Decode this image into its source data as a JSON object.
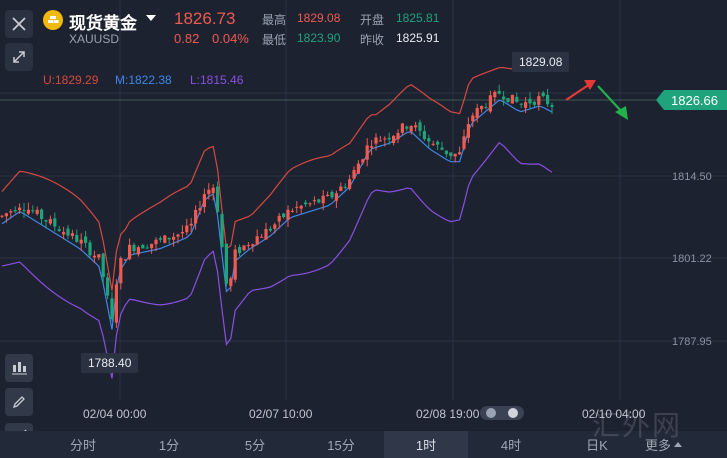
{
  "header": {
    "title": "现货黄金",
    "symbol": "XAUUSD",
    "price": "1826.73",
    "change": "0.82",
    "change_pct": "0.04%",
    "stats": {
      "high_label": "最高",
      "high": "1829.08",
      "open_label": "开盘",
      "open": "1825.81",
      "low_label": "最低",
      "low": "1823.90",
      "prev_close_label": "昨收",
      "prev_close": "1825.91"
    }
  },
  "bollinger": {
    "upper": "U:1829.29",
    "middle": "M:1822.38",
    "lower": "L:1815.46"
  },
  "price_axis": [
    "1814.50",
    "1801.22",
    "1787.95"
  ],
  "current_price_tag": "1826.66",
  "callouts": {
    "high": "1829.08",
    "low": "1788.40"
  },
  "time_axis": [
    "02/04 00:00",
    "02/07 10:00",
    "02/08 19:00",
    "02/10 04:00"
  ],
  "tabs": [
    {
      "label": "分时",
      "active": false
    },
    {
      "label": "1分",
      "active": false
    },
    {
      "label": "5分",
      "active": false
    },
    {
      "label": "15分",
      "active": false
    },
    {
      "label": "1时",
      "active": true
    },
    {
      "label": "4时",
      "active": false
    },
    {
      "label": "日K",
      "active": false
    },
    {
      "label": "更多",
      "active": false
    }
  ],
  "watermark": "汇外网",
  "colors": {
    "up": "#f05a4f",
    "down": "#1fa37a",
    "upper_band": "#d9483f",
    "middle_band": "#3f86e6",
    "lower_band": "#8b4fe0",
    "background": "#1c2230"
  },
  "icons": {
    "close": "close-icon",
    "expand": "expand-icon",
    "candles": "candlestick-icon",
    "draw": "pencil-icon",
    "indicator": "indicator-icon"
  }
}
